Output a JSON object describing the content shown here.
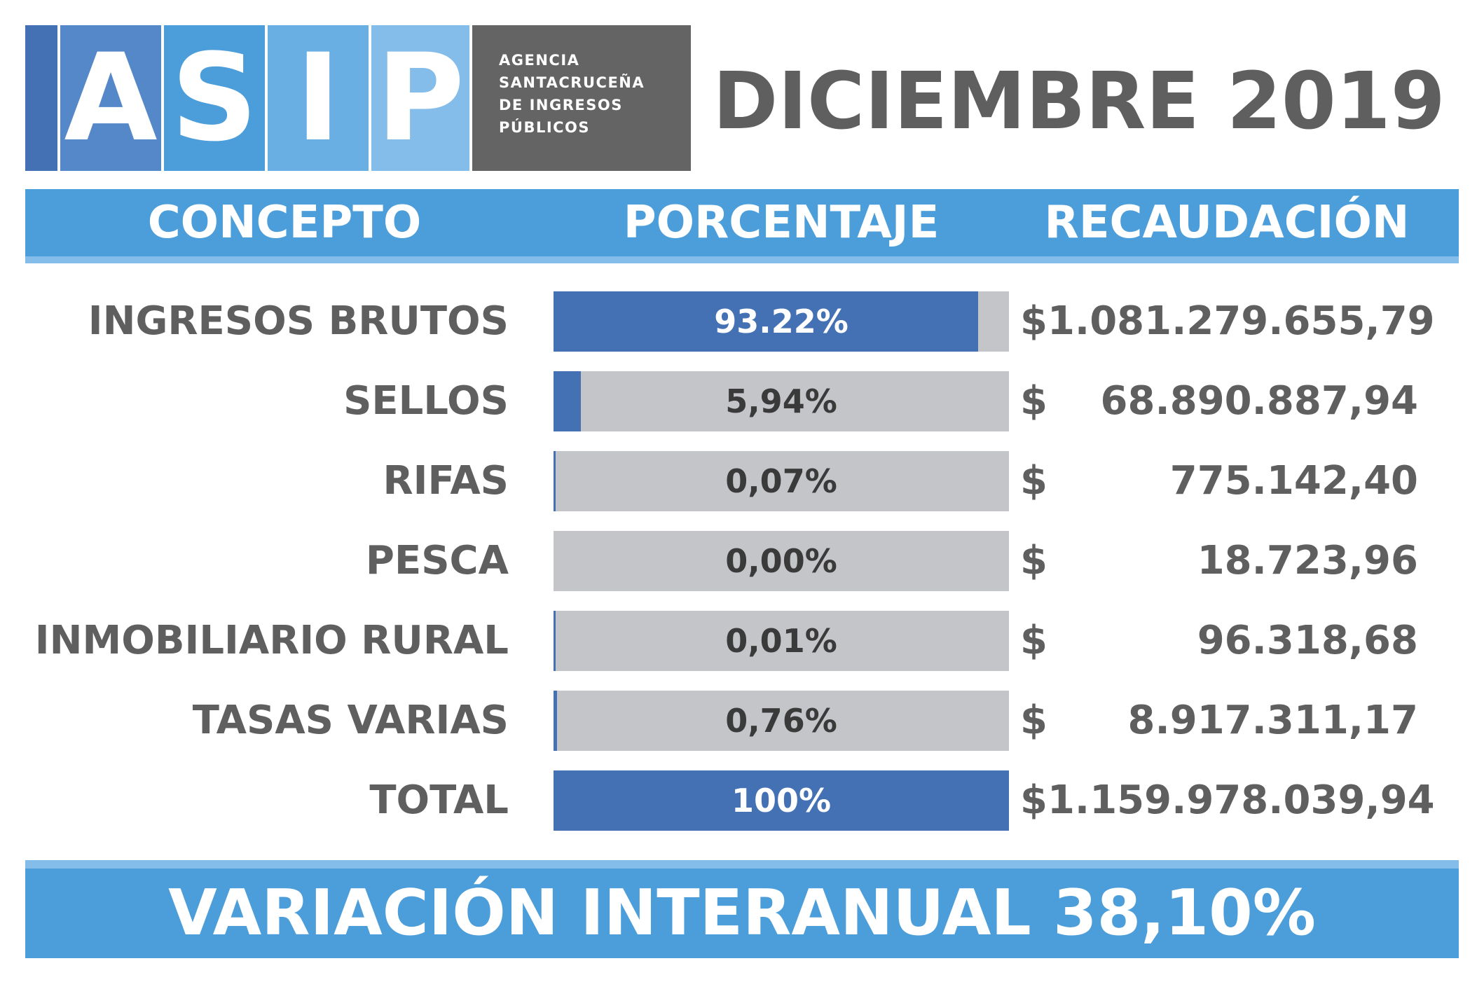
{
  "logo": {
    "letters": [
      "A",
      "S",
      "I",
      "P"
    ],
    "agency_lines": [
      "AGENCIA",
      "SANTACRUCEÑA",
      "DE INGRESOS",
      "PÚBLICOS"
    ]
  },
  "period": "DICIEMBRE 2019",
  "headers": {
    "concept": "CONCEPTO",
    "percentage": "PORCENTAJE",
    "collection": "RECAUDACIÓN"
  },
  "currency_symbol": "$",
  "chart_data": {
    "type": "bar",
    "orientation": "horizontal",
    "categories": [
      "INGRESOS BRUTOS",
      "SELLOS",
      "RIFAS",
      "PESCA",
      "INMOBILIARIO RURAL",
      "TASAS VARIAS",
      "TOTAL"
    ],
    "values": [
      93.22,
      5.94,
      0.07,
      0.0,
      0.01,
      0.76,
      100
    ],
    "value_labels": [
      "93.22%",
      "5,94%",
      "0,07%",
      "0,00%",
      "0,01%",
      "0,76%",
      "100%"
    ],
    "amounts": [
      "$1.081.279.655,79",
      "68.890.887,94",
      "775.142,40",
      "18.723,96",
      "96.318,68",
      "8.917.311,17",
      "$1.159.978.039,94"
    ],
    "xlim": [
      0,
      100
    ]
  },
  "footer": "VARIACIÓN INTERANUAL 38,10%",
  "colors": {
    "logo_strips": [
      "#4470b4",
      "#5588c9",
      "#4c9edb",
      "#6aafe4",
      "#85bdea"
    ],
    "logo_text_bg": "#646464",
    "band": "#4c9edb",
    "band_accent": "#85bdea",
    "bar_fill": "#4470b4",
    "bar_track": "#c4c5c9",
    "text_gray": "#5f5f5f"
  }
}
